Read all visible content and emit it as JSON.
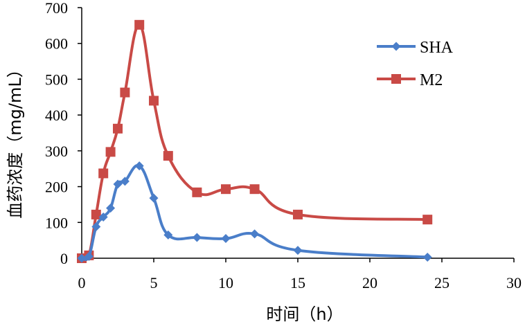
{
  "chart_data": {
    "type": "line",
    "xlabel": "时间（h）",
    "ylabel": "血药浓度（mg/mL）",
    "xlim": [
      0,
      30
    ],
    "ylim": [
      0,
      700
    ],
    "xticks": [
      0,
      5,
      10,
      15,
      20,
      25,
      30
    ],
    "yticks": [
      0,
      100,
      200,
      300,
      400,
      500,
      600,
      700
    ],
    "grid": false,
    "legend_position": "top-right",
    "series": [
      {
        "name": "SHA",
        "color": "#4a7ec9",
        "marker": "diamond",
        "x": [
          0,
          0.5,
          1,
          1.5,
          2,
          2.5,
          3,
          4,
          5,
          6,
          8,
          10,
          12,
          15,
          24
        ],
        "y": [
          0,
          5,
          88,
          115,
          140,
          207,
          215,
          258,
          168,
          65,
          58,
          55,
          68,
          22,
          3
        ]
      },
      {
        "name": "M2",
        "color": "#c94a46",
        "marker": "square",
        "x": [
          0,
          0.5,
          1,
          1.5,
          2,
          2.5,
          3,
          4,
          5,
          6,
          8,
          10,
          12,
          15,
          24
        ],
        "y": [
          0,
          8,
          122,
          237,
          297,
          362,
          463,
          652,
          440,
          286,
          184,
          193,
          193,
          122,
          108
        ]
      }
    ]
  }
}
